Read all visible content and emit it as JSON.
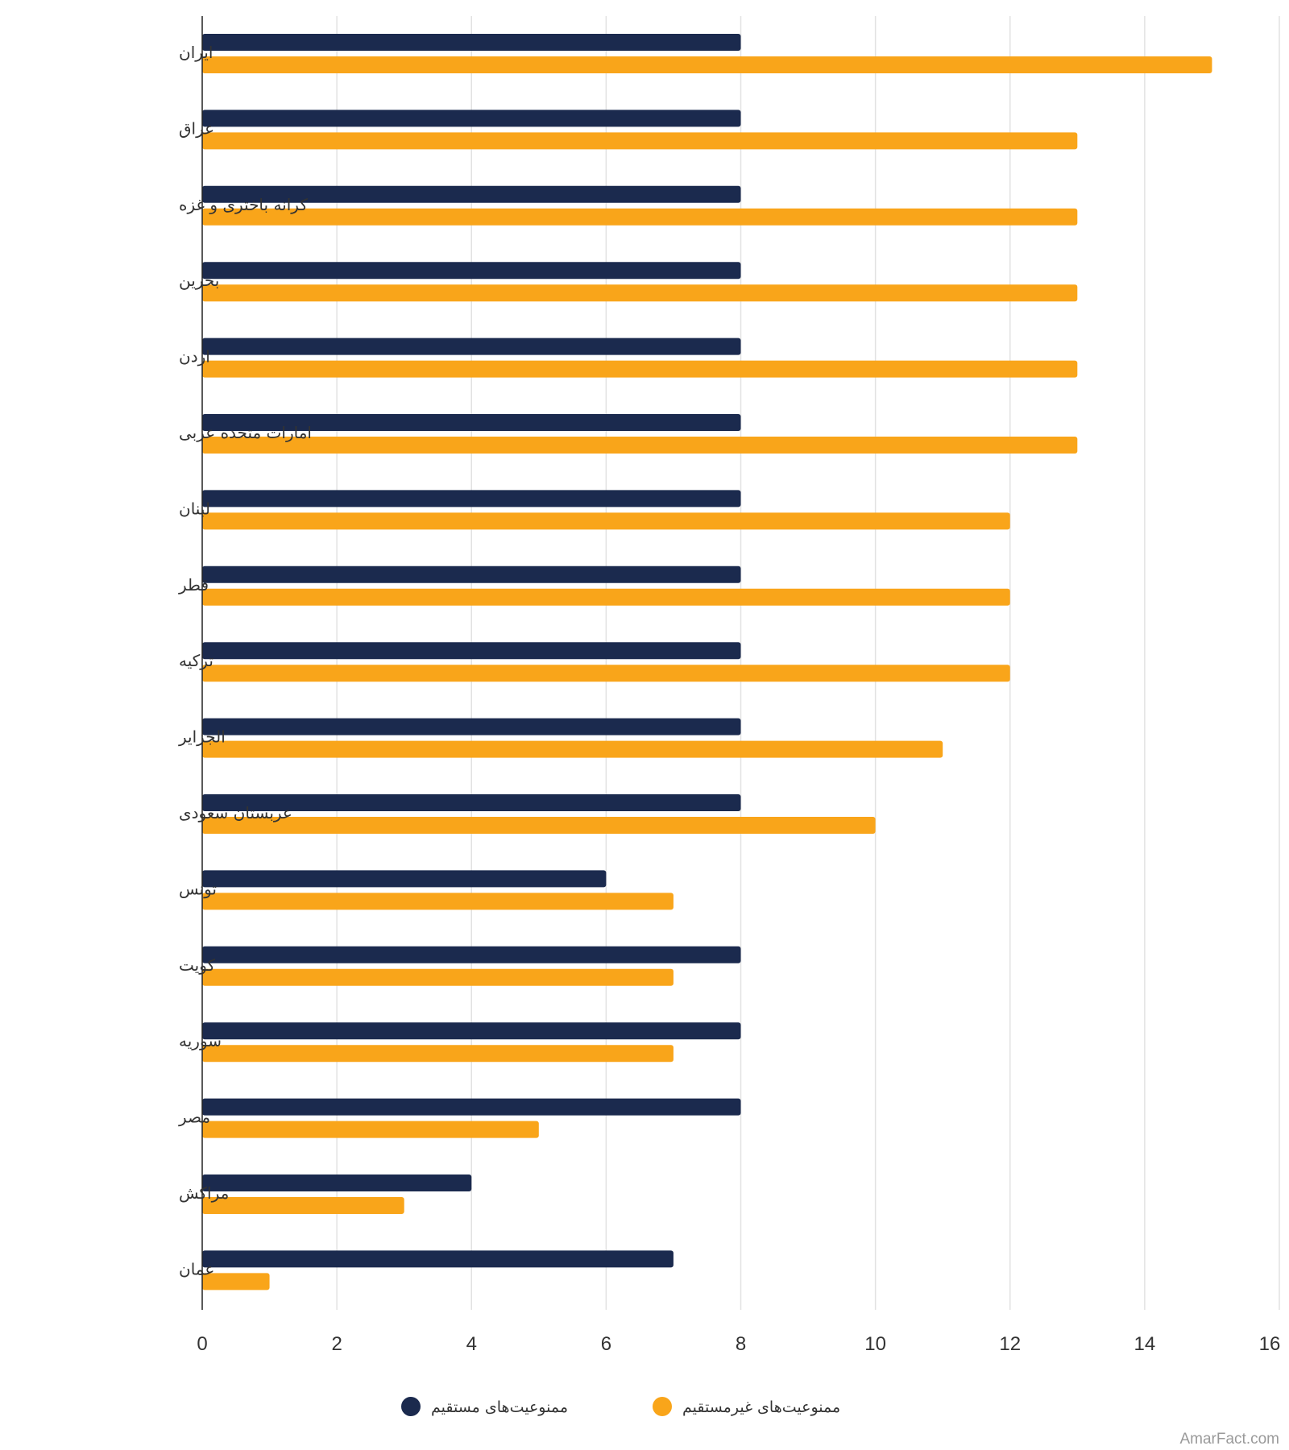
{
  "chart_data": {
    "type": "bar",
    "orientation": "horizontal",
    "categories": [
      "ایران",
      "عراق",
      "کرانه باختری و غزه",
      "بحرین",
      "اردن",
      "امارات متحده عربی",
      "لبنان",
      "قطر",
      "ترکیه",
      "الجزایر",
      "عربستان سعودی",
      "تونس",
      "کویت",
      "سوریه",
      "مصر",
      "مراکش",
      "عمان"
    ],
    "series": [
      {
        "name": "ممنوعیت‌های مستقیم",
        "color": "#1b2a4e",
        "values": [
          8,
          8,
          8,
          8,
          8,
          8,
          8,
          8,
          8,
          8,
          8,
          6,
          8,
          8,
          8,
          4,
          7
        ]
      },
      {
        "name": "ممنوعیت‌های غیرمستقیم",
        "color": "#f9a51a",
        "values": [
          15,
          13,
          13,
          13,
          13,
          13,
          12,
          12,
          12,
          11,
          10,
          7,
          7,
          7,
          5,
          3,
          1
        ]
      }
    ],
    "xlim": [
      0,
      16
    ],
    "xticks": [
      "0",
      "2",
      "4",
      "6",
      "8",
      "10",
      "12",
      "14",
      "16"
    ],
    "grid": true,
    "legend_position": "bottom"
  },
  "watermark": "AmarFact.com"
}
